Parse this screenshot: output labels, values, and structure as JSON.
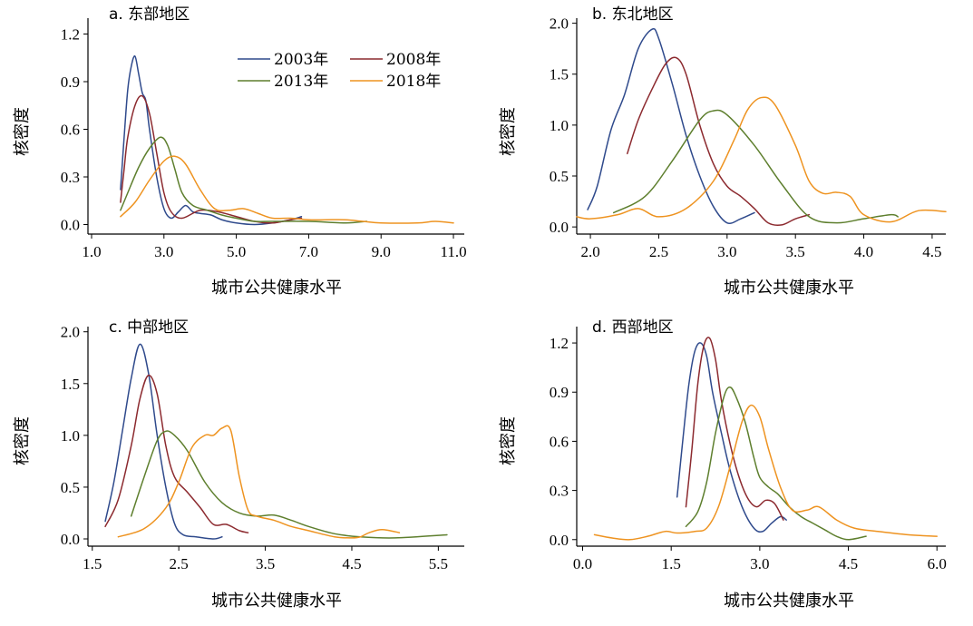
{
  "colors": {
    "2003年": "#2f4a8c",
    "2008年": "#8c2a2f",
    "2013年": "#5e7f2e",
    "2018年": "#ee9320"
  },
  "legend_order": [
    "2003年",
    "2008年",
    "2013年",
    "2018年"
  ],
  "chart_data": [
    {
      "type": "line",
      "title": "a. 东部地区",
      "xlabel": "城市公共健康水平",
      "ylabel": "核密度",
      "xlim": [
        0.9,
        11.3
      ],
      "ylim": [
        -0.06,
        1.3
      ],
      "xticks": [
        1.0,
        3.0,
        5.0,
        7.0,
        9.0,
        11.0
      ],
      "xtick_labels": [
        "1.0",
        "3.0",
        "5.0",
        "7.0",
        "9.0",
        "11.0"
      ],
      "yticks": [
        0.0,
        0.3,
        0.6,
        0.9,
        1.2
      ],
      "ytick_labels": [
        "0.0",
        "0.3",
        "0.6",
        "0.9",
        "1.2"
      ],
      "legend": "top-right",
      "series": [
        {
          "name": "2003年",
          "x": [
            1.8,
            1.9,
            2.0,
            2.1,
            2.2,
            2.3,
            2.4,
            2.5,
            2.6,
            2.8,
            3.0,
            3.2,
            3.4,
            3.6,
            3.8,
            4.0,
            4.3,
            4.6,
            5.0,
            5.5,
            6.0,
            6.5,
            6.8
          ],
          "y": [
            0.22,
            0.55,
            0.85,
            1.0,
            1.06,
            0.95,
            0.83,
            0.78,
            0.6,
            0.3,
            0.1,
            0.04,
            0.08,
            0.12,
            0.08,
            0.07,
            0.06,
            0.03,
            0.01,
            0.0,
            0.01,
            0.03,
            0.05
          ]
        },
        {
          "name": "2008年",
          "x": [
            1.8,
            1.9,
            2.0,
            2.2,
            2.4,
            2.6,
            2.8,
            3.0,
            3.2,
            3.5,
            4.0,
            4.5,
            5.0,
            5.5,
            6.0,
            6.5,
            6.8
          ],
          "y": [
            0.14,
            0.35,
            0.55,
            0.75,
            0.81,
            0.7,
            0.45,
            0.2,
            0.08,
            0.04,
            0.09,
            0.08,
            0.05,
            0.02,
            0.01,
            0.03,
            0.04
          ]
        },
        {
          "name": "2013年",
          "x": [
            1.8,
            2.0,
            2.3,
            2.6,
            2.9,
            3.1,
            3.3,
            3.5,
            3.8,
            4.2,
            4.6,
            5.0,
            5.5,
            6.0,
            7.0,
            8.0,
            8.6
          ],
          "y": [
            0.09,
            0.2,
            0.36,
            0.48,
            0.55,
            0.5,
            0.35,
            0.2,
            0.12,
            0.09,
            0.06,
            0.04,
            0.02,
            0.02,
            0.02,
            0.01,
            0.02
          ]
        },
        {
          "name": "2018年",
          "x": [
            1.8,
            2.2,
            2.6,
            3.0,
            3.3,
            3.6,
            4.0,
            4.4,
            4.8,
            5.2,
            5.6,
            6.0,
            6.5,
            7.0,
            7.5,
            8.0,
            8.5,
            9.0,
            10.0,
            10.5,
            11.0
          ],
          "y": [
            0.05,
            0.14,
            0.28,
            0.4,
            0.43,
            0.38,
            0.22,
            0.1,
            0.09,
            0.1,
            0.07,
            0.04,
            0.04,
            0.03,
            0.03,
            0.03,
            0.02,
            0.01,
            0.01,
            0.02,
            0.01
          ]
        }
      ]
    },
    {
      "type": "line",
      "title": "b. 东北地区",
      "xlabel": "城市公共健康水平",
      "ylabel": "核密度",
      "xlim": [
        1.9,
        4.6
      ],
      "ylim": [
        -0.07,
        2.05
      ],
      "xticks": [
        2.0,
        2.5,
        3.0,
        3.5,
        4.0,
        4.5
      ],
      "xtick_labels": [
        "2.0",
        "2.5",
        "3.0",
        "3.5",
        "4.0",
        "4.5"
      ],
      "yticks": [
        0.0,
        0.5,
        1.0,
        1.5,
        2.0
      ],
      "ytick_labels": [
        "0.0",
        "0.5",
        "1.0",
        "1.5",
        "2.0"
      ],
      "series": [
        {
          "name": "2003年",
          "x": [
            1.98,
            2.05,
            2.15,
            2.25,
            2.35,
            2.45,
            2.5,
            2.6,
            2.7,
            2.8,
            2.9,
            3.0,
            3.1,
            3.2
          ],
          "y": [
            0.17,
            0.4,
            0.95,
            1.3,
            1.75,
            1.94,
            1.85,
            1.4,
            0.9,
            0.5,
            0.2,
            0.04,
            0.08,
            0.14
          ]
        },
        {
          "name": "2008年",
          "x": [
            2.27,
            2.35,
            2.45,
            2.55,
            2.63,
            2.7,
            2.8,
            2.9,
            3.0,
            3.1,
            3.2,
            3.3,
            3.4,
            3.5,
            3.6
          ],
          "y": [
            0.72,
            1.05,
            1.35,
            1.6,
            1.66,
            1.5,
            1.0,
            0.62,
            0.4,
            0.3,
            0.18,
            0.04,
            0.02,
            0.08,
            0.12
          ]
        },
        {
          "name": "2013年",
          "x": [
            2.17,
            2.4,
            2.6,
            2.8,
            2.9,
            3.0,
            3.2,
            3.4,
            3.6,
            3.8,
            4.0,
            4.2,
            4.25
          ],
          "y": [
            0.14,
            0.3,
            0.65,
            1.05,
            1.14,
            1.1,
            0.8,
            0.42,
            0.1,
            0.04,
            0.08,
            0.12,
            0.1
          ]
        },
        {
          "name": "2018年",
          "x": [
            1.9,
            2.0,
            2.2,
            2.35,
            2.5,
            2.7,
            2.9,
            3.05,
            3.15,
            3.25,
            3.35,
            3.5,
            3.6,
            3.7,
            3.8,
            3.9,
            4.0,
            4.2,
            4.4,
            4.6
          ],
          "y": [
            0.1,
            0.08,
            0.12,
            0.18,
            0.1,
            0.18,
            0.45,
            0.85,
            1.15,
            1.27,
            1.2,
            0.8,
            0.45,
            0.33,
            0.34,
            0.3,
            0.12,
            0.05,
            0.16,
            0.15
          ]
        }
      ]
    },
    {
      "type": "line",
      "title": "c. 中部地区",
      "xlabel": "城市公共健康水平",
      "ylabel": "核密度",
      "xlim": [
        1.45,
        5.8
      ],
      "ylim": [
        -0.07,
        2.05
      ],
      "xticks": [
        1.5,
        2.5,
        3.5,
        4.5,
        5.5
      ],
      "xtick_labels": [
        "1.5",
        "2.5",
        "3.5",
        "4.5",
        "5.5"
      ],
      "yticks": [
        0.0,
        0.5,
        1.0,
        1.5,
        2.0
      ],
      "ytick_labels": [
        "0.0",
        "0.5",
        "1.0",
        "1.5",
        "2.0"
      ],
      "series": [
        {
          "name": "2003年",
          "x": [
            1.65,
            1.75,
            1.85,
            1.95,
            2.05,
            2.15,
            2.25,
            2.35,
            2.45,
            2.55,
            2.7,
            2.9,
            3.0
          ],
          "y": [
            0.17,
            0.55,
            1.05,
            1.55,
            1.88,
            1.6,
            1.0,
            0.5,
            0.15,
            0.04,
            0.02,
            0.0,
            0.02
          ]
        },
        {
          "name": "2008年",
          "x": [
            1.65,
            1.8,
            1.95,
            2.05,
            2.15,
            2.25,
            2.35,
            2.45,
            2.6,
            2.75,
            2.9,
            3.05,
            3.2,
            3.3
          ],
          "y": [
            0.12,
            0.38,
            0.9,
            1.35,
            1.58,
            1.4,
            0.9,
            0.6,
            0.45,
            0.3,
            0.14,
            0.14,
            0.08,
            0.06
          ]
        },
        {
          "name": "2013年",
          "x": [
            1.95,
            2.1,
            2.25,
            2.35,
            2.45,
            2.6,
            2.8,
            3.0,
            3.2,
            3.4,
            3.6,
            3.8,
            4.0,
            4.3,
            4.6,
            5.0,
            5.6
          ],
          "y": [
            0.22,
            0.6,
            0.95,
            1.04,
            1.0,
            0.85,
            0.55,
            0.35,
            0.25,
            0.22,
            0.23,
            0.18,
            0.12,
            0.05,
            0.02,
            0.01,
            0.04
          ]
        },
        {
          "name": "2018年",
          "x": [
            1.8,
            2.1,
            2.35,
            2.5,
            2.65,
            2.8,
            2.9,
            3.0,
            3.1,
            3.2,
            3.3,
            3.4,
            3.6,
            3.8,
            4.0,
            4.3,
            4.5,
            4.6,
            4.7,
            4.85,
            5.05
          ],
          "y": [
            0.02,
            0.1,
            0.3,
            0.55,
            0.88,
            1.0,
            1.0,
            1.07,
            1.05,
            0.6,
            0.28,
            0.22,
            0.18,
            0.12,
            0.08,
            0.02,
            0.01,
            0.02,
            0.06,
            0.09,
            0.06
          ]
        }
      ]
    },
    {
      "type": "line",
      "title": "d. 西部地区",
      "xlabel": "城市公共健康水平",
      "ylabel": "核密度",
      "xlim": [
        -0.1,
        6.15
      ],
      "ylim": [
        -0.04,
        1.3
      ],
      "xticks": [
        0.0,
        1.5,
        3.0,
        4.5,
        6.0
      ],
      "xtick_labels": [
        "0.0",
        "1.5",
        "3.0",
        "4.5",
        "6.0"
      ],
      "yticks": [
        0.0,
        0.3,
        0.6,
        0.9,
        1.2
      ],
      "ytick_labels": [
        "0.0",
        "0.3",
        "0.6",
        "0.9",
        "1.2"
      ],
      "series": [
        {
          "name": "2003年",
          "x": [
            1.6,
            1.7,
            1.8,
            1.9,
            2.0,
            2.1,
            2.2,
            2.35,
            2.5,
            2.7,
            2.9,
            3.05,
            3.2,
            3.35,
            3.45
          ],
          "y": [
            0.26,
            0.62,
            0.95,
            1.15,
            1.2,
            1.12,
            0.9,
            0.65,
            0.42,
            0.2,
            0.07,
            0.05,
            0.1,
            0.14,
            0.12
          ]
        },
        {
          "name": "2008年",
          "x": [
            1.75,
            1.85,
            1.95,
            2.05,
            2.15,
            2.25,
            2.35,
            2.5,
            2.65,
            2.8,
            2.95,
            3.1,
            3.25,
            3.4
          ],
          "y": [
            0.2,
            0.55,
            0.95,
            1.18,
            1.23,
            1.1,
            0.85,
            0.58,
            0.38,
            0.25,
            0.2,
            0.24,
            0.22,
            0.12
          ]
        },
        {
          "name": "2013年",
          "x": [
            1.75,
            1.95,
            2.1,
            2.25,
            2.4,
            2.5,
            2.6,
            2.75,
            2.9,
            3.0,
            3.15,
            3.3,
            3.5,
            3.7,
            3.9,
            4.1,
            4.3,
            4.5,
            4.8
          ],
          "y": [
            0.08,
            0.17,
            0.35,
            0.65,
            0.88,
            0.93,
            0.87,
            0.72,
            0.5,
            0.38,
            0.32,
            0.28,
            0.2,
            0.14,
            0.1,
            0.06,
            0.02,
            0.0,
            0.02
          ]
        },
        {
          "name": "2018年",
          "x": [
            0.2,
            0.5,
            0.8,
            1.1,
            1.4,
            1.6,
            1.9,
            2.1,
            2.3,
            2.5,
            2.7,
            2.85,
            3.0,
            3.15,
            3.35,
            3.55,
            3.8,
            4.0,
            4.3,
            4.6,
            5.0,
            5.5,
            6.0
          ],
          "y": [
            0.03,
            0.01,
            0.0,
            0.02,
            0.05,
            0.04,
            0.05,
            0.07,
            0.2,
            0.45,
            0.72,
            0.82,
            0.75,
            0.55,
            0.32,
            0.18,
            0.18,
            0.2,
            0.12,
            0.07,
            0.05,
            0.03,
            0.02
          ]
        }
      ]
    }
  ]
}
